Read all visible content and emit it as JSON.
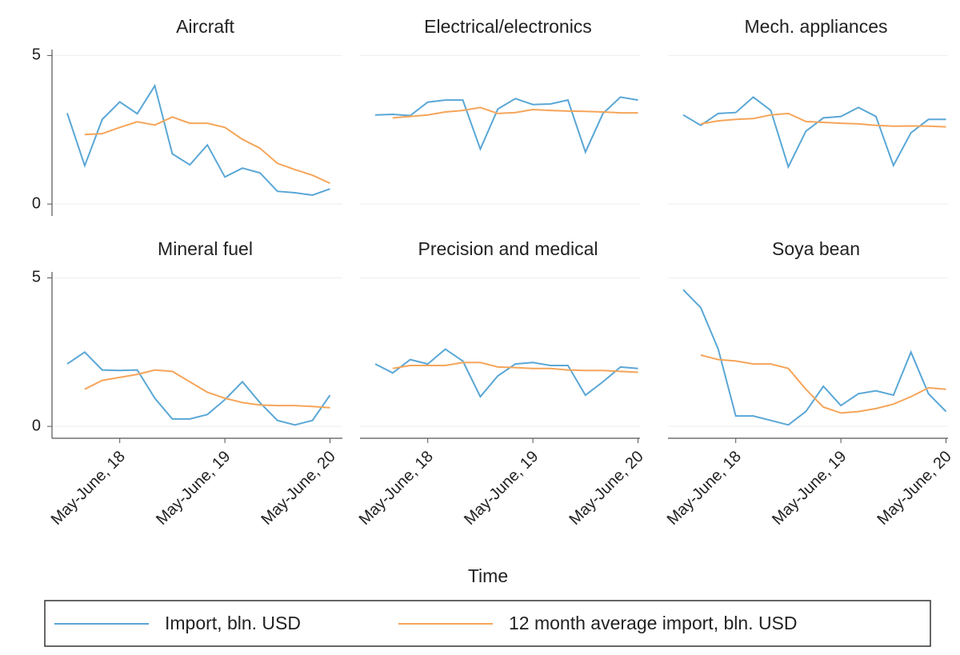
{
  "x_label": "Time",
  "legend": [
    {
      "name": "Import, bln. USD",
      "color": "#5aa7d6"
    },
    {
      "name": "12 month average import, bln. USD",
      "color": "#f5a55a"
    }
  ],
  "chart_data": [
    {
      "type": "line",
      "title": "Aircraft",
      "ylim": [
        -0.4,
        5.2
      ],
      "yticks": [
        0,
        5
      ],
      "series": [
        {
          "values": [
            3.06,
            1.29,
            2.85,
            3.44,
            3.04,
            3.98,
            1.69,
            1.32,
            1.99,
            0.91,
            1.21,
            1.05,
            0.43,
            0.38,
            0.3,
            0.51
          ]
        },
        {
          "values": [
            null,
            2.34,
            2.37,
            2.58,
            2.77,
            2.66,
            2.93,
            2.72,
            2.72,
            2.58,
            2.18,
            1.88,
            1.37,
            1.16,
            0.97,
            0.7
          ]
        }
      ]
    },
    {
      "type": "line",
      "title": "Electrical/electronics",
      "ylim": [
        -0.4,
        5.2
      ],
      "series": [
        {
          "values": [
            3.0,
            3.02,
            2.98,
            3.43,
            3.5,
            3.5,
            1.85,
            3.2,
            3.55,
            3.35,
            3.37,
            3.5,
            1.75,
            3.05,
            3.6,
            3.5
          ]
        },
        {
          "values": [
            null,
            2.9,
            2.95,
            3.0,
            3.1,
            3.15,
            3.25,
            3.05,
            3.08,
            3.18,
            3.15,
            3.13,
            3.12,
            3.1,
            3.07,
            3.07
          ]
        }
      ]
    },
    {
      "type": "line",
      "title": "Mech. appliances",
      "ylim": [
        -0.4,
        5.2
      ],
      "series": [
        {
          "values": [
            3.0,
            2.65,
            3.05,
            3.08,
            3.6,
            3.15,
            1.25,
            2.45,
            2.9,
            2.95,
            3.25,
            2.95,
            1.3,
            2.4,
            2.85,
            2.85
          ]
        },
        {
          "values": [
            null,
            2.7,
            2.8,
            2.85,
            2.88,
            3.0,
            3.05,
            2.78,
            2.75,
            2.72,
            2.7,
            2.65,
            2.62,
            2.63,
            2.62,
            2.6
          ]
        }
      ]
    },
    {
      "type": "line",
      "title": "Mineral fuel",
      "ylim": [
        -0.4,
        5.2
      ],
      "yticks": [
        0,
        5
      ],
      "categories": [
        null,
        null,
        null,
        "May-June, 18",
        null,
        null,
        null,
        null,
        null,
        "May-June, 19",
        null,
        null,
        null,
        null,
        null,
        "May-June, 20"
      ],
      "series": [
        {
          "values": [
            2.1,
            2.5,
            1.9,
            1.88,
            1.9,
            0.95,
            0.25,
            0.25,
            0.4,
            0.9,
            1.5,
            0.8,
            0.2,
            0.05,
            0.2,
            1.05
          ]
        },
        {
          "values": [
            null,
            1.25,
            1.55,
            1.65,
            1.75,
            1.9,
            1.85,
            1.5,
            1.15,
            0.95,
            0.8,
            0.72,
            0.7,
            0.7,
            0.67,
            0.63
          ]
        }
      ]
    },
    {
      "type": "line",
      "title": "Precision and medical",
      "ylim": [
        -0.4,
        5.2
      ],
      "categories": [
        null,
        null,
        null,
        "May-June, 18",
        null,
        null,
        null,
        null,
        null,
        "May-June, 19",
        null,
        null,
        null,
        null,
        null,
        "May-June, 20"
      ],
      "series": [
        {
          "values": [
            2.1,
            1.8,
            2.25,
            2.1,
            2.6,
            2.2,
            1.0,
            1.7,
            2.1,
            2.15,
            2.05,
            2.05,
            1.05,
            1.5,
            2.0,
            1.95
          ]
        },
        {
          "values": [
            null,
            1.95,
            2.05,
            2.05,
            2.05,
            2.15,
            2.15,
            2.0,
            1.98,
            1.95,
            1.95,
            1.9,
            1.88,
            1.88,
            1.85,
            1.82
          ]
        }
      ]
    },
    {
      "type": "line",
      "title": "Soya bean",
      "ylim": [
        -0.4,
        5.2
      ],
      "categories": [
        null,
        null,
        null,
        "May-June, 18",
        null,
        null,
        null,
        null,
        null,
        "May-June, 19",
        null,
        null,
        null,
        null,
        null,
        "May-June, 20"
      ],
      "series": [
        {
          "values": [
            4.6,
            4.0,
            2.6,
            0.35,
            0.35,
            0.2,
            0.05,
            0.5,
            1.35,
            0.7,
            1.1,
            1.2,
            1.05,
            2.5,
            1.1,
            0.5
          ]
        },
        {
          "values": [
            null,
            2.4,
            2.25,
            2.2,
            2.1,
            2.1,
            1.95,
            1.25,
            0.65,
            0.45,
            0.5,
            0.6,
            0.75,
            1.0,
            1.3,
            1.25
          ]
        }
      ]
    }
  ]
}
